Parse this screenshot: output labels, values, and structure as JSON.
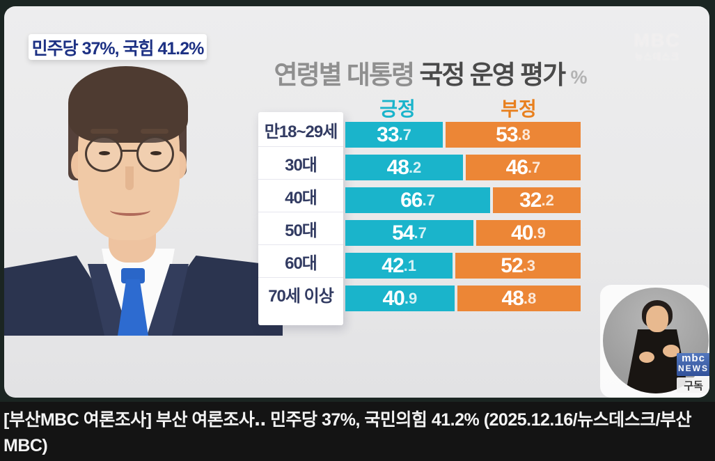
{
  "overlay_badge": {
    "text": "민주당 37%, 국힘 41.2%"
  },
  "watermark": {
    "line1": "MBC",
    "line2": "뉴스데스크"
  },
  "title": {
    "part1": "연령별 대통령 ",
    "part2": "국정 운영 평가",
    "unit": "%"
  },
  "chart_data": {
    "type": "bar",
    "orientation": "horizontal",
    "unit": "%",
    "title": "연령별 대통령 국정 운영 평가",
    "legend": [
      {
        "label": "긍정",
        "color": "#1ab4cb"
      },
      {
        "label": "부정",
        "color": "#ec8636"
      }
    ],
    "categories": [
      "만18~29세",
      "30대",
      "40대",
      "50대",
      "60대",
      "70세 이상"
    ],
    "series": [
      {
        "name": "긍정",
        "values": [
          33.7,
          48.2,
          66.7,
          54.7,
          42.1,
          40.9
        ]
      },
      {
        "name": "부정",
        "values": [
          53.8,
          46.7,
          32.2,
          40.9,
          52.3,
          48.8
        ]
      }
    ],
    "rows": [
      {
        "label": "만18~29세",
        "pos": 33.7,
        "neg": 53.8,
        "pos_int": "33",
        "pos_dec": ".7",
        "neg_int": "53",
        "neg_dec": ".8"
      },
      {
        "label": "30대",
        "pos": 48.2,
        "neg": 46.7,
        "pos_int": "48",
        "pos_dec": ".2",
        "neg_int": "46",
        "neg_dec": ".7"
      },
      {
        "label": "40대",
        "pos": 66.7,
        "neg": 32.2,
        "pos_int": "66",
        "pos_dec": ".7",
        "neg_int": "32",
        "neg_dec": ".2"
      },
      {
        "label": "50대",
        "pos": 54.7,
        "neg": 40.9,
        "pos_int": "54",
        "pos_dec": ".7",
        "neg_int": "40",
        "neg_dec": ".9"
      },
      {
        "label": "60대",
        "pos": 42.1,
        "neg": 52.3,
        "pos_int": "42",
        "pos_dec": ".1",
        "neg_int": "52",
        "neg_dec": ".3"
      },
      {
        "label": "70세 이상",
        "pos": 40.9,
        "neg": 48.8,
        "pos_int": "40",
        "pos_dec": ".9",
        "neg_int": "48",
        "neg_dec": ".8"
      }
    ]
  },
  "pip": {
    "logo_line1": "mbc",
    "logo_line2": "NEWS",
    "subscribe": "구독"
  },
  "caption": {
    "text": "[부산MBC 여론조사] 부산 여론조사‥ 민주당 37%, 국민의힘 41.2% (2025.12.16/뉴스데스크/부산 MBC)"
  },
  "colors": {
    "positive": "#1ab4cb",
    "negative": "#ec8636",
    "badge_text": "#1d3184",
    "label_text": "#323b62",
    "card_bg": "#e9e9ea",
    "frame_bg": "#1b2522",
    "caption_bg": "#141414"
  }
}
